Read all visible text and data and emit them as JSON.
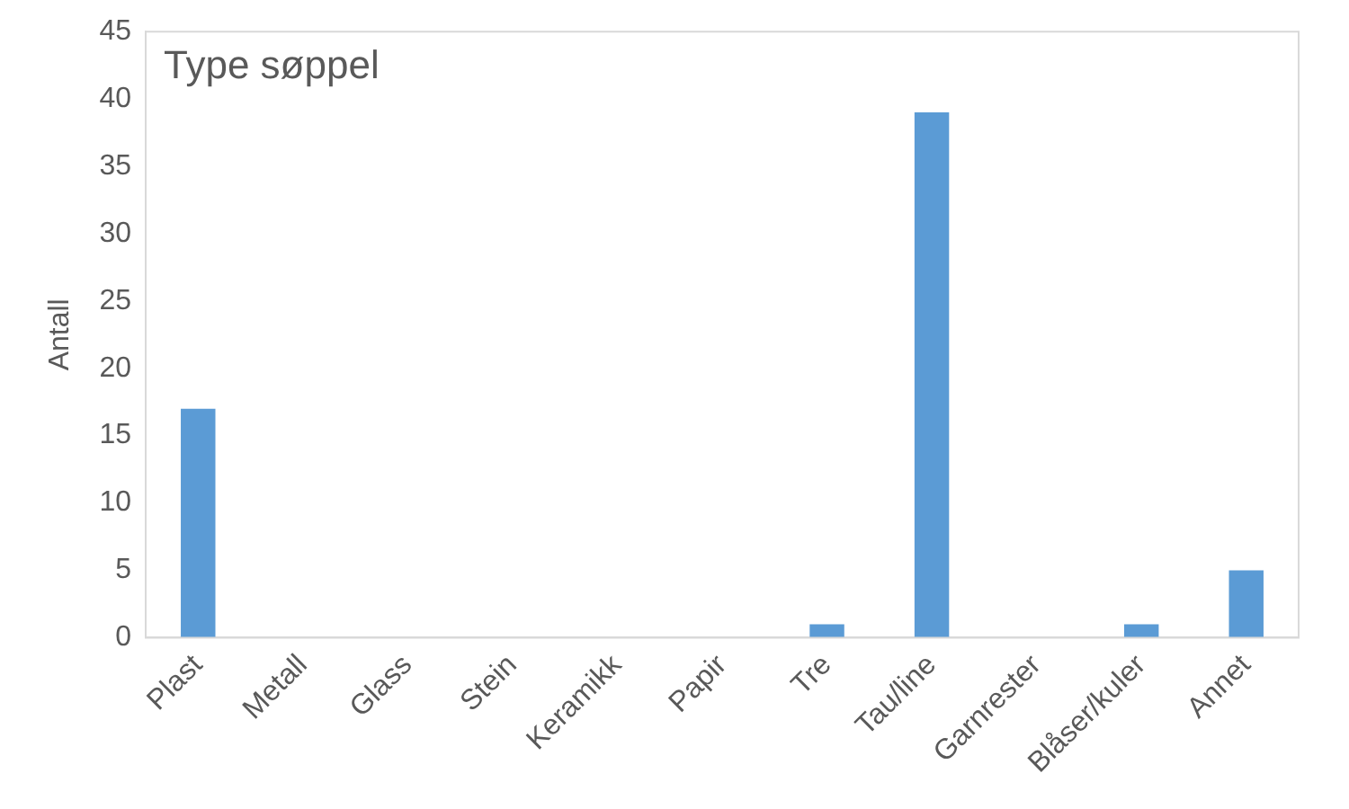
{
  "chart_data": {
    "type": "bar",
    "title": "Type søppel",
    "ylabel": "Antall",
    "categories": [
      "Plast",
      "Metall",
      "Glass",
      "Stein",
      "Keramikk",
      "Papir",
      "Tre",
      "Tau/line",
      "Garnrester",
      "Blåser/kuler",
      "Annet"
    ],
    "values": [
      17,
      0,
      0,
      0,
      0,
      0,
      1,
      39,
      0,
      1,
      5
    ],
    "color": "#5b9bd5",
    "ylim": [
      0,
      45
    ],
    "yticks": [
      0,
      5,
      10,
      15,
      20,
      25,
      30,
      35,
      40,
      45
    ],
    "grid": false,
    "legend": false
  }
}
